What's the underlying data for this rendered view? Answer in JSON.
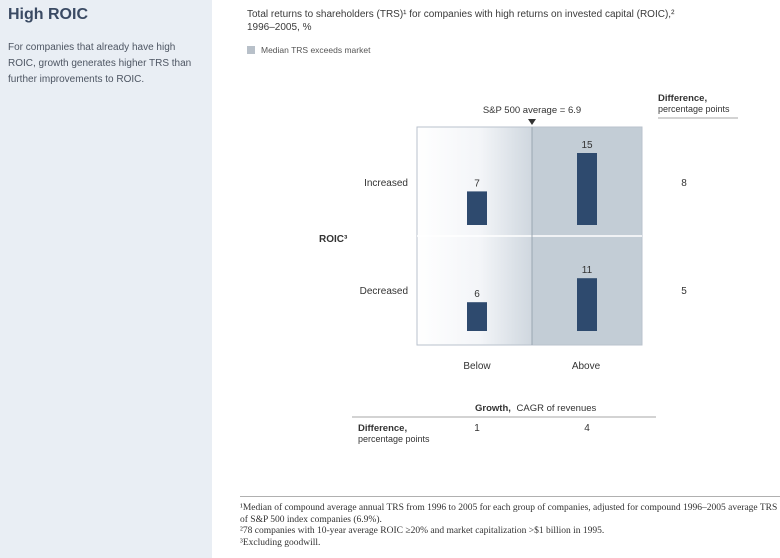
{
  "sidebar": {
    "title": "High ROIC",
    "description": "For companies that already have high ROIC, growth generates higher TRS than further improvements to ROIC."
  },
  "header": {
    "title_line1": "Total returns to shareholders (TRS)¹ for companies with high returns on invested capital (ROIC),²",
    "title_line2": "1996–2005, %"
  },
  "legend": {
    "label": "Median TRS exceeds market"
  },
  "colors": {
    "bar": "#2e4a6e",
    "highlight_region": "#c3cdd6",
    "sidebar_bg": "#e9eef4"
  },
  "chart_data": {
    "type": "bar",
    "title": "Total returns to shareholders (TRS)¹ for companies with high returns on invested capital (ROIC),² 1996–2005, %",
    "rows": [
      "Increased",
      "Decreased"
    ],
    "columns": [
      "Below",
      "Above"
    ],
    "row_axis_label": "ROIC³",
    "column_axis_label_bold": "Growth,",
    "column_axis_label": "CAGR of revenues",
    "reference_label": "S&P 500 average = 6.9",
    "reference_value": 6.9,
    "series": [
      {
        "row": "Increased",
        "values": [
          7,
          15
        ]
      },
      {
        "row": "Decreased",
        "values": [
          6,
          11
        ]
      }
    ],
    "row_difference_title": "Difference,",
    "row_difference_subtitle": "percentage points",
    "row_differences": [
      8,
      5
    ],
    "column_difference_title": "Difference,",
    "column_difference_subtitle": "percentage points",
    "column_differences": [
      1,
      4
    ],
    "highlighted_cells": [
      [
        "Increased",
        "Above"
      ],
      [
        "Decreased",
        "Above"
      ]
    ]
  },
  "footnotes": [
    "¹Median of compound average annual TRS from 1996 to 2005 for each group of companies, adjusted for compound 1996–2005 average TRS of S&P 500 index companies (6.9%).",
    "²78 companies with 10-year average ROIC ≥20% and market capitalization >$1 billion in 1995.",
    "³Excluding goodwill."
  ]
}
